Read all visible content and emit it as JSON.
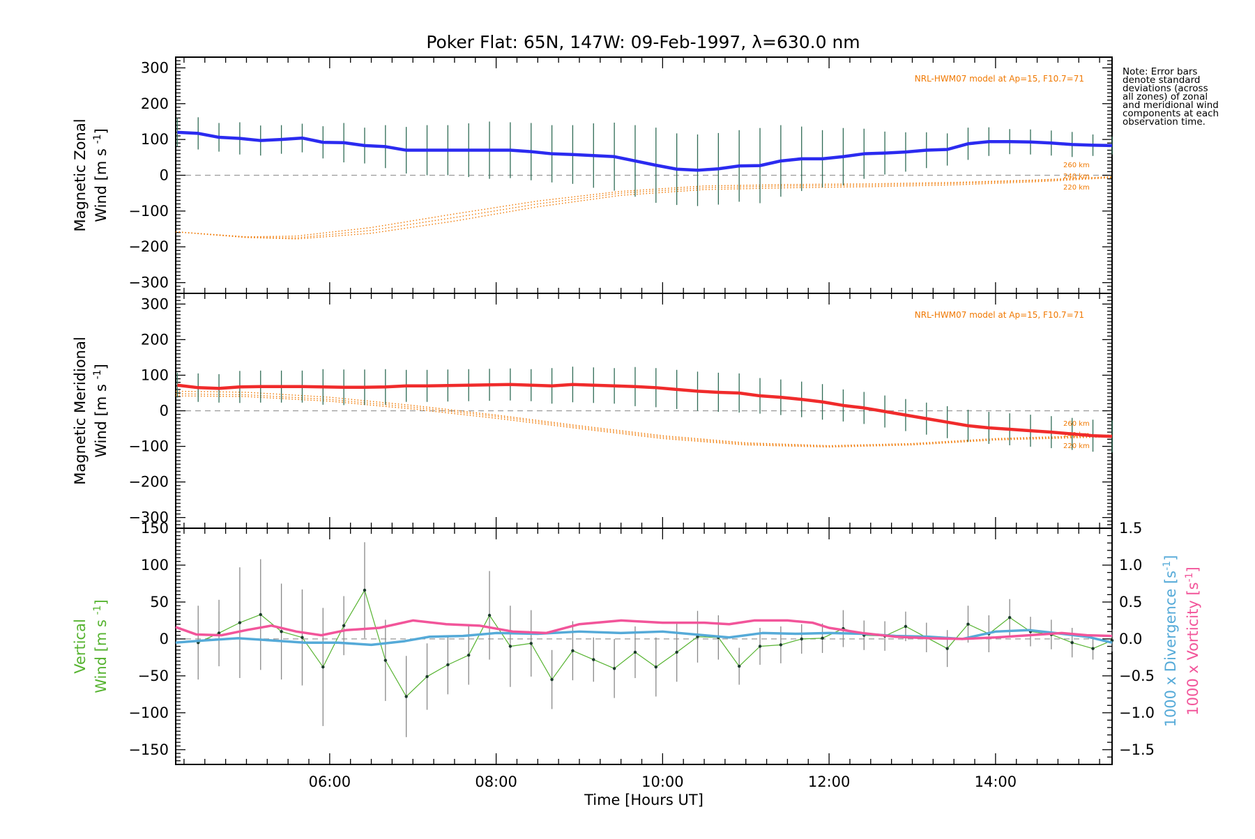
{
  "title": "Poker Flat: 65N, 147W: 09-Feb-1997, λ=630.0 nm",
  "note": "Note: Error bars denote standard deviations (across all zones) of zonal and meridional wind components at each observation time.",
  "colors": {
    "zonal": "#2b2bf0",
    "meridional": "#f02b2b",
    "model": "#f07800",
    "vertical": "#56b330",
    "divergence": "#55aad8",
    "vorticity": "#f2559a",
    "errorbar": "#555555",
    "zero_line": "#999999"
  },
  "chart_data": [
    {
      "type": "line",
      "panel": "zonal",
      "ylabel_line1": "Magnetic Zonal",
      "ylabel_line2": "Wind [m s",
      "ylabel_sup": "-1",
      "ylabel_close": "]",
      "ylim": [
        -330,
        330
      ],
      "yticks": [
        -300,
        -200,
        -100,
        0,
        100,
        200,
        300
      ],
      "xlim": [
        4.15,
        15.4
      ],
      "x": [
        4.17,
        4.42,
        4.67,
        4.92,
        5.17,
        5.42,
        5.67,
        5.92,
        6.17,
        6.42,
        6.67,
        6.92,
        7.17,
        7.42,
        7.67,
        7.92,
        8.17,
        8.42,
        8.67,
        8.92,
        9.17,
        9.42,
        9.67,
        9.92,
        10.17,
        10.42,
        10.67,
        10.92,
        11.17,
        11.42,
        11.67,
        11.92,
        12.17,
        12.42,
        12.67,
        12.92,
        13.17,
        13.42,
        13.67,
        13.92,
        14.17,
        14.42,
        14.67,
        14.92,
        15.17,
        15.4
      ],
      "values": [
        120,
        117,
        106,
        103,
        97,
        100,
        104,
        92,
        91,
        83,
        80,
        70,
        70,
        70,
        70,
        70,
        70,
        66,
        60,
        58,
        55,
        52,
        40,
        28,
        17,
        14,
        18,
        26,
        27,
        40,
        46,
        46,
        52,
        60,
        62,
        65,
        70,
        72,
        88,
        94,
        94,
        93,
        90,
        86,
        84,
        83
      ],
      "errors": [
        40,
        45,
        40,
        45,
        42,
        40,
        40,
        45,
        55,
        50,
        60,
        65,
        70,
        70,
        75,
        80,
        78,
        80,
        80,
        82,
        90,
        95,
        100,
        105,
        100,
        100,
        100,
        100,
        105,
        100,
        90,
        80,
        80,
        70,
        60,
        55,
        50,
        45,
        45,
        40,
        35,
        35,
        35,
        35,
        30,
        25
      ],
      "model": {
        "label": "NRL-HWM07 model at Ap=15, F10.7=71",
        "altitudes": [
          "260 km",
          "240 km",
          "220 km"
        ],
        "x": [
          4.15,
          5.0,
          5.6,
          6.5,
          7.5,
          8.5,
          9.5,
          10.5,
          11.5,
          12.5,
          13.5,
          14.5,
          15.4
        ],
        "series": [
          {
            "name": "260 km",
            "values": [
              -158,
              -172,
              -170,
              -146,
              -108,
              -72,
              -45,
              -30,
              -26,
              -24,
              -20,
              -13,
              -4
            ]
          },
          {
            "name": "240 km",
            "values": [
              -158,
              -173,
              -175,
              -154,
              -118,
              -80,
              -50,
              -35,
              -30,
              -28,
              -23,
              -15,
              -5
            ]
          },
          {
            "name": "220 km",
            "values": [
              -158,
              -174,
              -178,
              -162,
              -128,
              -88,
              -56,
              -40,
              -35,
              -32,
              -27,
              -18,
              -7
            ]
          }
        ]
      }
    },
    {
      "type": "line",
      "panel": "meridional",
      "ylabel_line1": "Magnetic Meridional",
      "ylabel_line2": "Wind [m s",
      "ylabel_sup": "-1",
      "ylabel_close": "]",
      "ylim": [
        -330,
        330
      ],
      "yticks": [
        -300,
        -200,
        -100,
        0,
        100,
        200,
        300
      ],
      "xlim": [
        4.15,
        15.4
      ],
      "x": [
        4.17,
        4.42,
        4.67,
        4.92,
        5.17,
        5.42,
        5.67,
        5.92,
        6.17,
        6.42,
        6.67,
        6.92,
        7.17,
        7.42,
        7.67,
        7.92,
        8.17,
        8.42,
        8.67,
        8.92,
        9.17,
        9.42,
        9.67,
        9.92,
        10.17,
        10.42,
        10.67,
        10.92,
        11.17,
        11.42,
        11.67,
        11.92,
        12.17,
        12.42,
        12.67,
        12.92,
        13.17,
        13.42,
        13.67,
        13.92,
        14.17,
        14.42,
        14.67,
        14.92,
        15.17,
        15.4
      ],
      "values": [
        72,
        65,
        63,
        67,
        68,
        68,
        68,
        67,
        66,
        66,
        67,
        70,
        70,
        71,
        72,
        73,
        74,
        72,
        70,
        74,
        72,
        70,
        68,
        65,
        60,
        55,
        52,
        50,
        42,
        38,
        32,
        25,
        15,
        8,
        -2,
        -12,
        -22,
        -32,
        -42,
        -48,
        -52,
        -56,
        -60,
        -65,
        -70,
        -72
      ],
      "errors": [
        35,
        40,
        40,
        45,
        45,
        45,
        45,
        50,
        50,
        50,
        50,
        45,
        45,
        45,
        45,
        45,
        45,
        45,
        50,
        50,
        50,
        50,
        55,
        55,
        55,
        55,
        55,
        55,
        50,
        50,
        50,
        50,
        45,
        45,
        45,
        45,
        45,
        45,
        45,
        45,
        45,
        45,
        45,
        45,
        45,
        45
      ],
      "model": {
        "label": "NRL-HWM07 model at Ap=15, F10.7=71",
        "altitudes": [
          "260 km",
          "240 km",
          "220 km"
        ],
        "x": [
          4.15,
          5.0,
          6.0,
          7.0,
          8.0,
          9.0,
          10.0,
          11.0,
          12.0,
          13.0,
          14.0,
          15.4
        ],
        "series": [
          {
            "name": "260 km",
            "values": [
              55,
              52,
              38,
              15,
              -12,
              -42,
              -70,
              -90,
              -98,
              -92,
              -78,
              -68
            ]
          },
          {
            "name": "240 km",
            "values": [
              48,
              45,
              32,
              10,
              -16,
              -46,
              -74,
              -93,
              -100,
              -94,
              -80,
              -70
            ]
          },
          {
            "name": "220 km",
            "values": [
              42,
              40,
              27,
              5,
              -21,
              -50,
              -78,
              -96,
              -102,
              -96,
              -82,
              -73
            ]
          }
        ]
      }
    },
    {
      "type": "line",
      "panel": "vertical",
      "ylabel_line1": "Vertical",
      "ylabel_line2": "Wind [m s",
      "ylabel_sup": "-1",
      "ylabel_close": "]",
      "ylim": [
        -170,
        150
      ],
      "yticks": [
        -150,
        -100,
        -50,
        0,
        50,
        100,
        150
      ],
      "xlim": [
        4.15,
        15.4
      ],
      "xticks": [
        "06:00",
        "08:00",
        "10:00",
        "12:00",
        "14:00"
      ],
      "xtick_values": [
        6,
        8,
        10,
        12,
        14
      ],
      "xlabel": "Time [Hours UT]",
      "x": [
        4.42,
        4.67,
        4.92,
        5.17,
        5.42,
        5.67,
        5.92,
        6.17,
        6.42,
        6.67,
        6.92,
        7.17,
        7.42,
        7.67,
        7.92,
        8.17,
        8.42,
        8.67,
        8.92,
        9.17,
        9.42,
        9.67,
        9.92,
        10.17,
        10.42,
        10.67,
        10.92,
        11.17,
        11.42,
        11.67,
        11.92,
        12.17,
        12.42,
        12.67,
        12.92,
        13.17,
        13.42,
        13.67,
        13.92,
        14.17,
        14.42,
        14.67,
        14.92,
        15.17,
        15.4
      ],
      "values": [
        -5,
        8,
        22,
        33,
        10,
        2,
        -38,
        18,
        66,
        -29,
        -78,
        -51,
        -35,
        -22,
        32,
        -10,
        -6,
        -55,
        -16,
        -28,
        -40,
        -18,
        -38,
        -18,
        3,
        2,
        -37,
        -10,
        -8,
        0,
        1,
        14,
        5,
        4,
        17,
        2,
        -13,
        20,
        7,
        29,
        10,
        6,
        -5,
        -13,
        -2
      ],
      "errors": [
        50,
        45,
        75,
        75,
        65,
        65,
        80,
        40,
        65,
        55,
        55,
        45,
        40,
        40,
        60,
        55,
        45,
        40,
        40,
        30,
        40,
        35,
        40,
        40,
        35,
        30,
        25,
        25,
        25,
        20,
        20,
        25,
        20,
        20,
        20,
        20,
        25,
        25,
        25,
        25,
        20,
        20,
        20,
        15,
        15
      ],
      "y2label_div": "1000 x Divergence [s",
      "y2label_vor": "1000 x Vorticity [s",
      "y2label_sup": "-1",
      "y2label_close": "]",
      "y2lim": [
        -1.7,
        1.5
      ],
      "y2ticks": [
        -1.5,
        -1.0,
        -0.5,
        0.0,
        0.5,
        1.0,
        1.5
      ],
      "y2ticklabels": [
        "-1.5",
        "-1.0",
        "-0.5",
        "0.0",
        "0.5",
        "1.0",
        "1.5"
      ],
      "divergence": {
        "x": [
          4.15,
          4.5,
          4.9,
          5.3,
          5.7,
          6.1,
          6.5,
          6.9,
          7.2,
          7.6,
          8.0,
          8.5,
          9.0,
          9.5,
          10.0,
          10.5,
          10.8,
          11.2,
          11.6,
          12.0,
          12.4,
          12.8,
          13.2,
          13.6,
          14.0,
          14.4,
          14.8,
          15.1,
          15.4
        ],
        "values": [
          -0.05,
          -0.02,
          0.01,
          -0.02,
          -0.05,
          -0.05,
          -0.08,
          -0.03,
          0.03,
          0.04,
          0.08,
          0.07,
          0.1,
          0.08,
          0.1,
          0.05,
          0.02,
          0.08,
          0.07,
          0.08,
          0.07,
          0.04,
          0.03,
          0.0,
          0.1,
          0.12,
          0.07,
          0.03,
          -0.05
        ]
      },
      "vorticity": {
        "x": [
          4.15,
          4.4,
          4.7,
          5.0,
          5.3,
          5.6,
          5.9,
          6.2,
          6.6,
          7.0,
          7.4,
          7.8,
          8.2,
          8.6,
          9.0,
          9.5,
          10.0,
          10.5,
          10.8,
          11.1,
          11.5,
          11.8,
          12.0,
          12.4,
          12.8,
          13.2,
          13.6,
          14.0,
          14.4,
          14.8,
          15.1,
          15.4
        ],
        "values": [
          0.16,
          0.06,
          0.05,
          0.12,
          0.18,
          0.1,
          0.05,
          0.12,
          0.15,
          0.25,
          0.2,
          0.18,
          0.1,
          0.08,
          0.2,
          0.25,
          0.22,
          0.22,
          0.2,
          0.25,
          0.25,
          0.22,
          0.15,
          0.08,
          0.03,
          0.01,
          0.0,
          0.02,
          0.05,
          0.08,
          0.05,
          0.04
        ]
      }
    }
  ]
}
